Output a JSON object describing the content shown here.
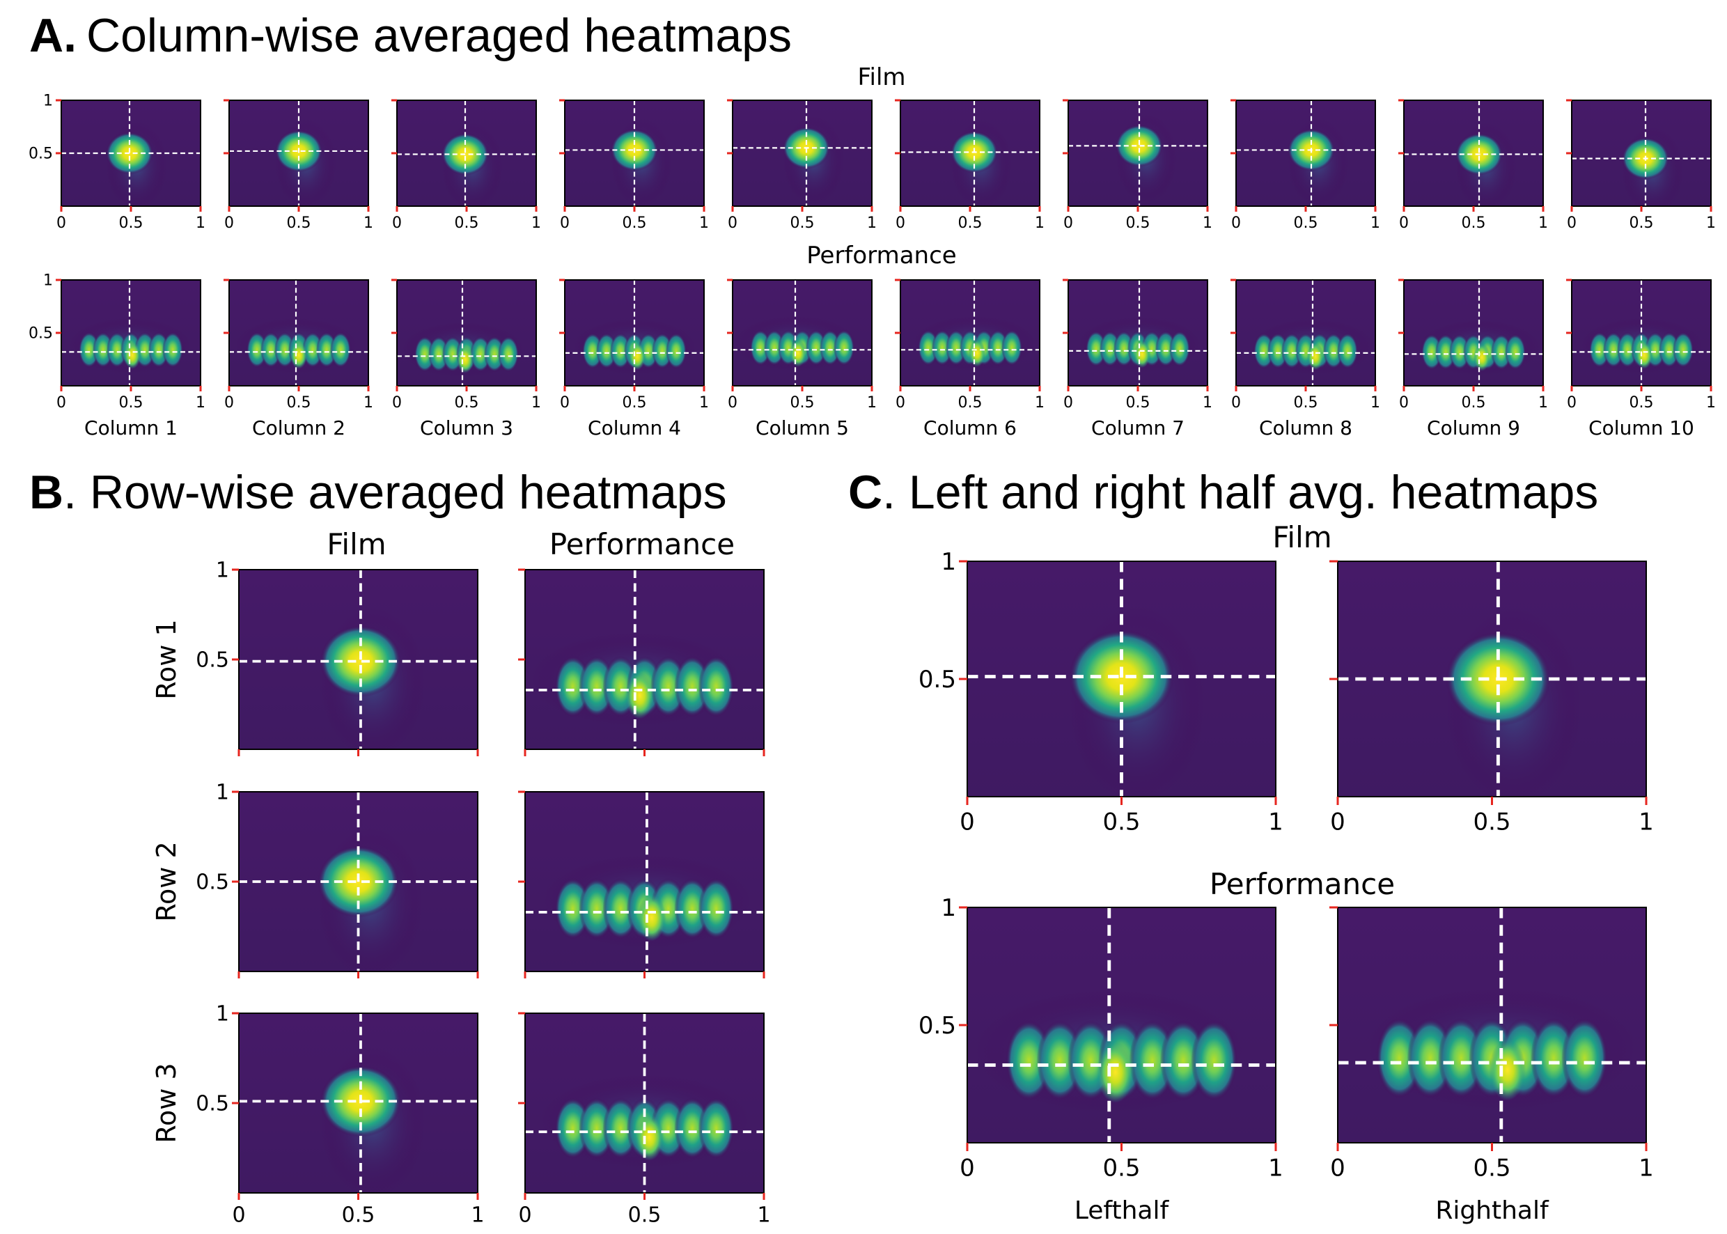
{
  "panels": {
    "A": {
      "letter": "A.",
      "title": "Column-wise averaged heatmaps",
      "row_labels": [
        "Film",
        "Performance"
      ]
    },
    "B": {
      "letter": "B",
      "title": ". Row-wise averaged heatmaps",
      "col_labels": [
        "Film",
        "Performance"
      ]
    },
    "C": {
      "letter": "C",
      "title": ". Left and right half avg. heatmaps",
      "row_labels": [
        "Film",
        "Performance"
      ]
    }
  },
  "colors": {
    "cmap": "viridis",
    "crosshair": "#ffffff",
    "tick": "#e6261f"
  },
  "chart_data": [
    {
      "id": "A",
      "type": "heatmap",
      "title": "Column-wise averaged heatmaps",
      "xlim": [
        0,
        1
      ],
      "ylim": [
        0,
        1
      ],
      "xticks": [
        "0",
        "0.5",
        "1"
      ],
      "yticks": [
        "0.5",
        "1"
      ],
      "grid": false,
      "crosshair": "dashed white",
      "rows": [
        {
          "name": "Film",
          "cells": [
            {
              "label": "Column 1",
              "cx": 0.49,
              "cy": 0.5
            },
            {
              "label": "Column 2",
              "cx": 0.5,
              "cy": 0.52
            },
            {
              "label": "Column 3",
              "cx": 0.49,
              "cy": 0.49
            },
            {
              "label": "Column 4",
              "cx": 0.5,
              "cy": 0.53
            },
            {
              "label": "Column 5",
              "cx": 0.53,
              "cy": 0.55
            },
            {
              "label": "Column 6",
              "cx": 0.53,
              "cy": 0.51
            },
            {
              "label": "Column 7",
              "cx": 0.51,
              "cy": 0.57
            },
            {
              "label": "Column 8",
              "cx": 0.54,
              "cy": 0.53
            },
            {
              "label": "Column 9",
              "cx": 0.54,
              "cy": 0.49
            },
            {
              "label": "Column 10",
              "cx": 0.53,
              "cy": 0.45
            }
          ]
        },
        {
          "name": "Performance",
          "cells": [
            {
              "label": "Column 1",
              "cx": 0.49,
              "cy": 0.32
            },
            {
              "label": "Column 2",
              "cx": 0.48,
              "cy": 0.32
            },
            {
              "label": "Column 3",
              "cx": 0.47,
              "cy": 0.28
            },
            {
              "label": "Column 4",
              "cx": 0.5,
              "cy": 0.31
            },
            {
              "label": "Column 5",
              "cx": 0.45,
              "cy": 0.34
            },
            {
              "label": "Column 6",
              "cx": 0.53,
              "cy": 0.34
            },
            {
              "label": "Column 7",
              "cx": 0.51,
              "cy": 0.33
            },
            {
              "label": "Column 8",
              "cx": 0.55,
              "cy": 0.31
            },
            {
              "label": "Column 9",
              "cx": 0.54,
              "cy": 0.3
            },
            {
              "label": "Column 10",
              "cx": 0.5,
              "cy": 0.32
            }
          ]
        }
      ]
    },
    {
      "id": "B",
      "type": "heatmap",
      "title": "Row-wise averaged heatmaps",
      "xlim": [
        0,
        1
      ],
      "ylim": [
        0,
        1
      ],
      "xticks": [
        "0",
        "0.5",
        "1"
      ],
      "yticks": [
        "0.5",
        "1"
      ],
      "grid": false,
      "crosshair": "dashed white",
      "columns": [
        "Film",
        "Performance"
      ],
      "rows": [
        {
          "label": "Row 1",
          "cells": [
            {
              "cx": 0.51,
              "cy": 0.49
            },
            {
              "cx": 0.46,
              "cy": 0.33
            }
          ]
        },
        {
          "label": "Row 2",
          "cells": [
            {
              "cx": 0.5,
              "cy": 0.5
            },
            {
              "cx": 0.51,
              "cy": 0.33
            }
          ]
        },
        {
          "label": "Row 3",
          "cells": [
            {
              "cx": 0.51,
              "cy": 0.51
            },
            {
              "cx": 0.5,
              "cy": 0.34
            }
          ]
        }
      ]
    },
    {
      "id": "C",
      "type": "heatmap",
      "title": "Left and right half avg. heatmaps",
      "xlim": [
        0,
        1
      ],
      "ylim": [
        0,
        1
      ],
      "xticks": [
        "0",
        "0.5",
        "1"
      ],
      "yticks": [
        "0.5",
        "1"
      ],
      "grid": false,
      "crosshair": "dashed white",
      "columns": [
        "Lefthalf",
        "Righthalf"
      ],
      "rows": [
        {
          "name": "Film",
          "cells": [
            {
              "cx": 0.5,
              "cy": 0.51
            },
            {
              "cx": 0.52,
              "cy": 0.5
            }
          ]
        },
        {
          "name": "Performance",
          "cells": [
            {
              "cx": 0.46,
              "cy": 0.33
            },
            {
              "cx": 0.53,
              "cy": 0.34
            }
          ]
        }
      ]
    }
  ]
}
